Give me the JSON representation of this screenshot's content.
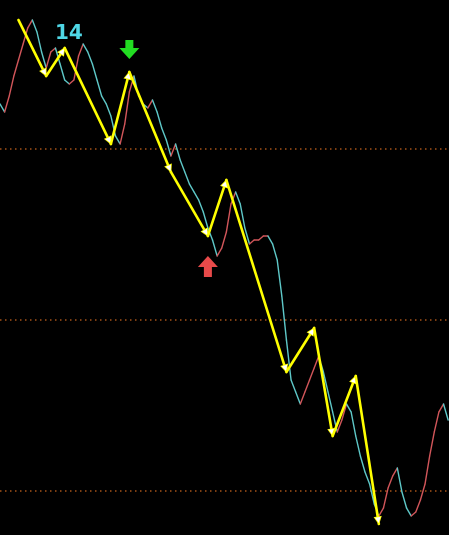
{
  "chart_data": {
    "type": "line",
    "title": "",
    "xlabel": "",
    "ylabel": "",
    "grid": false,
    "legend": "none",
    "annotation_text": "14",
    "colors": {
      "background": "#000000",
      "price_up": "#d2565a",
      "price_down": "#5ec8c8",
      "zigzag": "#ffff00",
      "zigzag_marker": "#ffffff",
      "level_line": "#c8641e",
      "sell_arrow": "#22dd22",
      "buy_arrow": "#e84a4a",
      "annotation": "#4fd7e6"
    },
    "levels": [
      "level-1",
      "level-2",
      "level-3"
    ],
    "series": [
      {
        "role": "price",
        "x": [
          0,
          1,
          2,
          3,
          4,
          5,
          6,
          7,
          8,
          9,
          10,
          11,
          12,
          13,
          14,
          15,
          16,
          17,
          18,
          19,
          20,
          21,
          22,
          23,
          24,
          25,
          26,
          27,
          28,
          29,
          30,
          31,
          32,
          33,
          34,
          35,
          36,
          37,
          38,
          39,
          40,
          41,
          42,
          43,
          44,
          45,
          46,
          47,
          48,
          49,
          50,
          51,
          52,
          53,
          54,
          55,
          56,
          57,
          58,
          59,
          60,
          61,
          62,
          63,
          64,
          65,
          66,
          67,
          68,
          69,
          70,
          71,
          72,
          73,
          74,
          75,
          76,
          77,
          78,
          79,
          80,
          81,
          82,
          83,
          84,
          85,
          86,
          87,
          88,
          89,
          90,
          91,
          92,
          93,
          94,
          95,
          96,
          97
        ],
        "values": [
          71,
          69,
          73,
          78,
          82,
          86,
          90,
          92,
          89,
          84,
          80,
          84,
          85,
          81,
          77,
          76,
          77,
          83,
          86,
          84,
          81,
          77,
          73,
          71,
          68,
          63,
          61,
          66,
          74,
          78,
          73,
          71,
          70,
          72,
          69,
          65,
          62,
          58,
          61,
          57,
          54,
          51,
          49,
          47,
          44,
          40,
          37,
          33,
          35,
          39,
          46,
          49,
          46,
          40,
          36,
          37,
          37,
          38,
          38,
          36,
          32,
          23,
          12,
          2,
          -1,
          -4,
          -1,
          2,
          5,
          8,
          4,
          -1,
          -6,
          -11,
          -8,
          -4,
          -6,
          -12,
          -17,
          -21,
          -24,
          -29,
          -32,
          -30,
          -25,
          -22,
          -20,
          -26,
          -30,
          -32,
          -31,
          -28,
          -24,
          -17,
          -11,
          -6,
          -4,
          -8
        ]
      },
      {
        "role": "zigzag",
        "x": [
          4,
          10,
          14,
          24,
          28,
          37,
          45,
          49,
          62,
          68,
          72,
          77,
          82
        ],
        "values": [
          92,
          78,
          85,
          61,
          79,
          54,
          38,
          52,
          4,
          15,
          -12,
          3,
          -34
        ]
      }
    ],
    "signals": [
      {
        "type": "sell",
        "x": 28
      },
      {
        "type": "buy",
        "x": 45
      }
    ]
  }
}
